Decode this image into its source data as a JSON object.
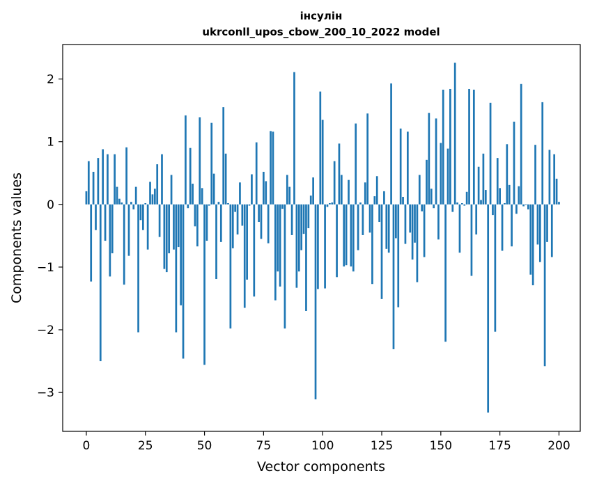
{
  "chart_data": {
    "type": "bar",
    "title_line1": "інсулін",
    "title_line2": "ukrconll_upos_cbow_200_10_2022 model",
    "xlabel": "Vector components",
    "ylabel": "Components values",
    "xlim": [
      -10,
      209
    ],
    "ylim": [
      -3.62,
      2.55
    ],
    "xticks": [
      0,
      25,
      50,
      75,
      100,
      125,
      150,
      175,
      200
    ],
    "xtick_labels": [
      "0",
      "25",
      "50",
      "75",
      "100",
      "125",
      "150",
      "175",
      "200"
    ],
    "yticks": [
      -3,
      -2,
      -1,
      0,
      1,
      2
    ],
    "ytick_labels": [
      "−3",
      "−2",
      "−1",
      "0",
      "1",
      "2"
    ],
    "bar_color": "#1f77b4",
    "grid": false,
    "values": [
      0.21,
      0.69,
      -1.23,
      0.52,
      -0.41,
      0.74,
      -2.5,
      0.88,
      -0.58,
      0.8,
      -1.15,
      -0.78,
      0.8,
      0.28,
      0.09,
      0.03,
      -1.28,
      0.91,
      -0.82,
      0.04,
      -0.08,
      0.28,
      -2.04,
      -0.25,
      -0.41,
      0.02,
      -0.72,
      0.36,
      0.16,
      0.25,
      0.64,
      -0.52,
      0.8,
      -1.03,
      -1.08,
      -0.78,
      0.47,
      -0.72,
      -2.04,
      -0.68,
      -1.61,
      -2.46,
      1.42,
      -0.06,
      0.9,
      0.33,
      -0.35,
      -0.67,
      1.39,
      0.26,
      -2.56,
      -0.58,
      -0.02,
      1.3,
      0.49,
      -1.19,
      0.04,
      -0.6,
      1.55,
      0.81,
      0.02,
      -1.98,
      -0.7,
      -0.12,
      -0.48,
      0.35,
      -0.34,
      -1.65,
      -1.2,
      -0.02,
      0.48,
      -1.47,
      0.99,
      -0.28,
      -0.55,
      0.52,
      0.37,
      -0.62,
      1.17,
      1.16,
      -1.53,
      -1.07,
      -1.31,
      -0.07,
      -1.98,
      0.47,
      0.28,
      -0.49,
      2.11,
      -1.33,
      -1.07,
      -0.73,
      -0.47,
      -1.7,
      -0.38,
      0.14,
      0.43,
      -3.11,
      -1.35,
      1.8,
      1.35,
      -1.34,
      -0.04,
      0.02,
      0.03,
      0.69,
      -1.16,
      0.97,
      0.47,
      -0.99,
      -0.97,
      0.39,
      -0.99,
      -1.07,
      1.29,
      -0.73,
      0.03,
      -0.49,
      0.35,
      1.45,
      -0.45,
      -1.27,
      0.13,
      0.45,
      -0.28,
      -1.51,
      0.21,
      -0.71,
      -0.77,
      1.93,
      -2.31,
      -0.54,
      -1.64,
      1.21,
      0.12,
      -0.63,
      1.16,
      -0.45,
      -0.88,
      -0.61,
      -1.24,
      0.47,
      -0.11,
      -0.84,
      0.71,
      1.46,
      0.25,
      -0.06,
      1.37,
      -0.56,
      0.98,
      1.83,
      -2.19,
      0.89,
      1.84,
      -0.12,
      2.26,
      0.03,
      -0.77,
      0.02,
      -0.02,
      0.2,
      1.84,
      -1.14,
      1.83,
      -0.48,
      0.6,
      0.07,
      0.81,
      0.23,
      -3.32,
      1.62,
      -0.17,
      -2.03,
      0.74,
      0.26,
      -0.74,
      0.02,
      0.96,
      0.31,
      -0.67,
      1.32,
      -0.15,
      0.29,
      1.92,
      -0.03,
      -0.01,
      -0.08,
      -1.12,
      -1.29,
      0.95,
      -0.64,
      -0.92,
      1.63,
      -2.58,
      -0.6,
      0.87,
      -0.84,
      0.8,
      0.41,
      0.04
    ]
  }
}
